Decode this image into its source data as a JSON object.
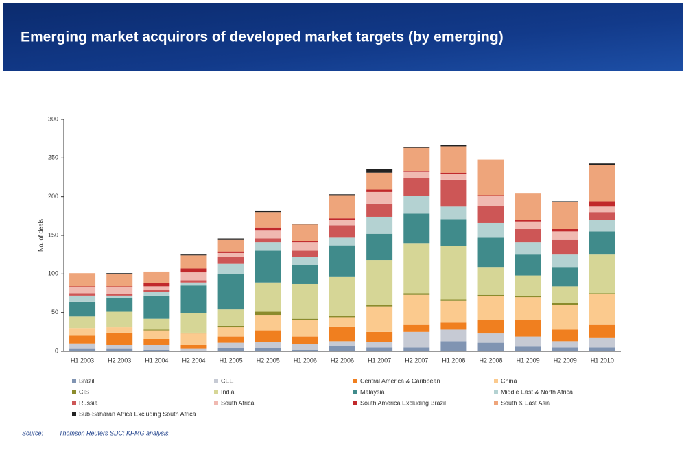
{
  "chart_data": {
    "type": "stacked_bar",
    "title": "Emerging market acquirors of developed market targets (by emerging)",
    "y_label": "No. of deals",
    "categories": [
      "H1 2003",
      "H2 2003",
      "H1 2004",
      "H2 2004",
      "H1 2005",
      "H2 2005",
      "H1 2006",
      "H2 2006",
      "H1 2007",
      "H2 2007",
      "H1 2008",
      "H2 2008",
      "H1 2009",
      "H2 2009",
      "H1 2010"
    ],
    "ylim": [
      0,
      300
    ],
    "yticks": [
      0,
      50,
      100,
      150,
      200,
      250,
      300
    ],
    "grid": false,
    "series": [
      {
        "name": "Brazil",
        "color": "#8094b2",
        "values": [
          3,
          3,
          2,
          1,
          4,
          4,
          2,
          7,
          5,
          5,
          13,
          11,
          6,
          5,
          5
        ]
      },
      {
        "name": "CEE",
        "color": "#c6cad4",
        "values": [
          7,
          5,
          6,
          2,
          7,
          8,
          7,
          6,
          7,
          20,
          15,
          12,
          13,
          8,
          12
        ]
      },
      {
        "name": "Central America & Caribbean",
        "color": "#f07f1f",
        "values": [
          10,
          16,
          8,
          5,
          8,
          15,
          10,
          19,
          13,
          9,
          9,
          17,
          21,
          15,
          17
        ]
      },
      {
        "name": "China",
        "color": "#fbca8e",
        "values": [
          10,
          7,
          11,
          15,
          12,
          20,
          21,
          12,
          33,
          39,
          28,
          31,
          30,
          32,
          40
        ]
      },
      {
        "name": "CIS",
        "color": "#8b8b2c",
        "values": [
          0,
          0,
          1,
          1,
          2,
          4,
          2,
          2,
          2,
          2,
          2,
          2,
          1,
          3,
          1
        ]
      },
      {
        "name": "India",
        "color": "#d6d696",
        "values": [
          15,
          20,
          14,
          25,
          21,
          38,
          45,
          50,
          58,
          65,
          69,
          36,
          27,
          21,
          50
        ]
      },
      {
        "name": "Malaysia",
        "color": "#408b8b",
        "values": [
          19,
          18,
          30,
          36,
          46,
          41,
          25,
          41,
          34,
          38,
          35,
          38,
          27,
          25,
          30
        ]
      },
      {
        "name": "Middle East & North Africa",
        "color": "#b4d2d2",
        "values": [
          8,
          3,
          5,
          4,
          13,
          11,
          10,
          10,
          22,
          23,
          16,
          19,
          16,
          16,
          15
        ]
      },
      {
        "name": "Russia",
        "color": "#cd5656",
        "values": [
          3,
          2,
          2,
          3,
          9,
          5,
          8,
          16,
          17,
          23,
          35,
          22,
          17,
          19,
          10
        ]
      },
      {
        "name": "South Africa",
        "color": "#f0b9b1",
        "values": [
          8,
          9,
          5,
          10,
          5,
          10,
          11,
          7,
          15,
          8,
          7,
          13,
          10,
          11,
          7
        ]
      },
      {
        "name": "South America Excluding Brazil",
        "color": "#c1292b",
        "values": [
          1,
          1,
          4,
          5,
          2,
          4,
          1,
          2,
          3,
          1,
          2,
          1,
          2,
          3,
          7
        ]
      },
      {
        "name": "South & East Asia",
        "color": "#eea57b",
        "values": [
          17,
          16,
          15,
          17,
          15,
          20,
          22,
          30,
          22,
          30,
          34,
          46,
          34,
          35,
          47
        ]
      },
      {
        "name": "Sub-Saharan Africa Excluding South Africa",
        "color": "#222222",
        "values": [
          0,
          1,
          0,
          1,
          2,
          2,
          1,
          1,
          5,
          1,
          2,
          0,
          0,
          1,
          2
        ]
      }
    ]
  },
  "source": {
    "label": "Source:",
    "text": "Thomson Reuters SDC; KPMG analysis."
  }
}
